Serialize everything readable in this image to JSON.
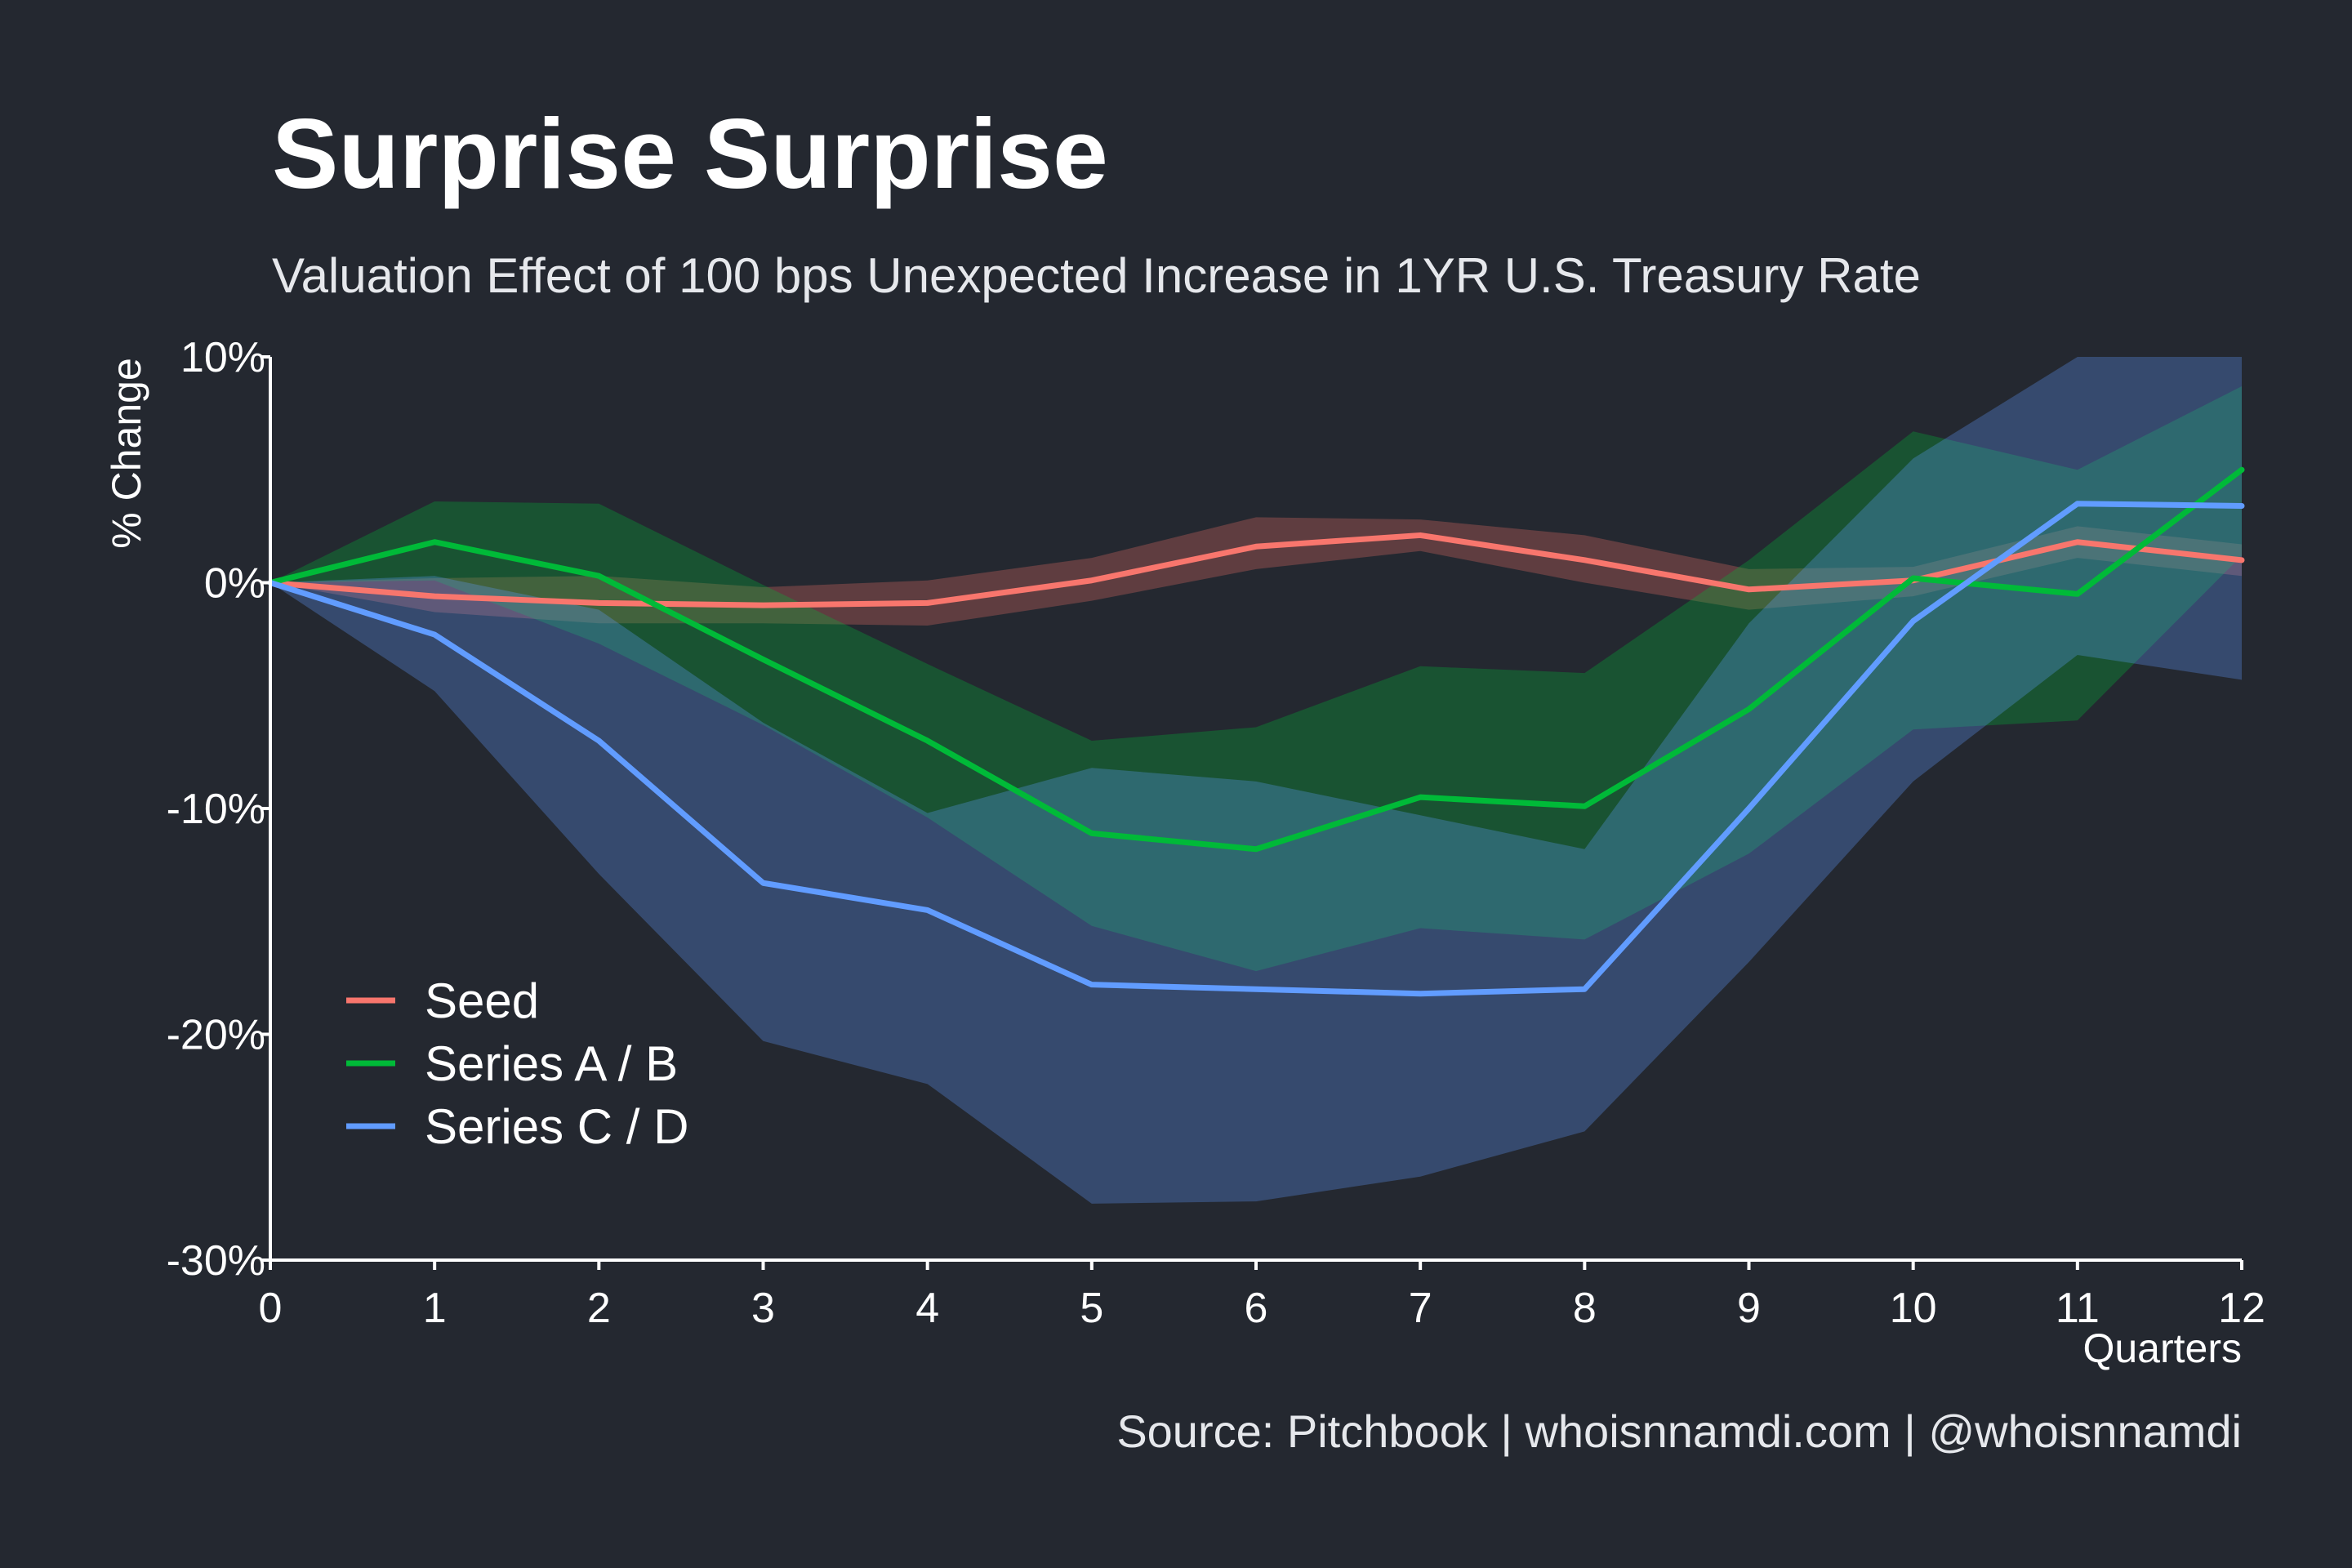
{
  "colors": {
    "background": "#242830",
    "axis": "#ffffff",
    "text": "#ffffff"
  },
  "title": "Surprise Surprise",
  "subtitle": "Valuation Effect of 100 bps Unexpected Increase in 1YR U.S. Treasury Rate",
  "source": "Source: Pitchbook | whoisnnamdi.com | @whoisnnamdi",
  "chart_data": {
    "type": "line",
    "x": [
      0,
      1,
      2,
      3,
      4,
      5,
      6,
      7,
      8,
      9,
      10,
      11,
      12
    ],
    "xlabel": "Quarters",
    "ylabel": "% Change",
    "xlim": [
      0,
      12
    ],
    "ylim": [
      -30,
      10
    ],
    "x_ticks": [
      "0",
      "1",
      "2",
      "3",
      "4",
      "5",
      "6",
      "7",
      "8",
      "9",
      "10",
      "11",
      "12"
    ],
    "y_ticks": [
      {
        "value": 10,
        "label": "10%"
      },
      {
        "value": 0,
        "label": "0%"
      },
      {
        "value": -10,
        "label": "-10%"
      },
      {
        "value": -20,
        "label": "-20%"
      },
      {
        "value": -30,
        "label": "-30%"
      }
    ],
    "grid": false,
    "legend_position": "bottom-left",
    "series": [
      {
        "name": "Seed",
        "color": "#f8766d",
        "values": [
          0,
          -0.6,
          -0.9,
          -1.0,
          -0.9,
          0.1,
          1.6,
          2.1,
          1.0,
          -0.3,
          0.1,
          1.8,
          1.0
        ],
        "band_upper": [
          0,
          0.2,
          0.3,
          -0.2,
          0.1,
          1.1,
          2.9,
          2.8,
          2.1,
          0.6,
          0.7,
          2.5,
          1.7
        ],
        "band_lower": [
          0,
          -1.3,
          -1.8,
          -1.8,
          -1.9,
          -0.8,
          0.6,
          1.4,
          0.0,
          -1.2,
          -0.6,
          1.1,
          0.3
        ],
        "band_opacity": 0.28
      },
      {
        "name": "Series A / B",
        "color": "#00ba38",
        "values": [
          0,
          1.8,
          0.3,
          -3.4,
          -7.0,
          -11.1,
          -11.8,
          -9.5,
          -9.9,
          -5.6,
          0.2,
          -0.5,
          5.0
        ],
        "band_upper": [
          0,
          3.6,
          3.5,
          -0.1,
          -3.6,
          -7.0,
          -6.4,
          -3.7,
          -4.0,
          1.0,
          6.7,
          5.0,
          8.7
        ],
        "band_lower": [
          0,
          0.1,
          -2.7,
          -6.3,
          -10.4,
          -15.2,
          -17.2,
          -15.3,
          -15.8,
          -12.0,
          -6.5,
          -6.1,
          1.2
        ],
        "band_opacity": 0.3
      },
      {
        "name": "Series C / D",
        "color": "#619cff",
        "values": [
          0,
          -2.3,
          -7.0,
          -13.3,
          -14.5,
          -17.8,
          -18.0,
          -18.2,
          -18.0,
          -10.0,
          -1.7,
          3.5,
          3.4
        ],
        "band_upper": [
          0,
          0.3,
          -1.2,
          -6.2,
          -10.2,
          -8.2,
          -8.8,
          -10.3,
          -11.8,
          -1.8,
          5.5,
          10.0,
          10.0
        ],
        "band_lower": [
          0,
          -4.8,
          -12.9,
          -20.3,
          -22.2,
          -27.5,
          -27.4,
          -26.3,
          -24.3,
          -16.8,
          -8.8,
          -3.2,
          -4.3
        ],
        "band_opacity": 0.3
      }
    ]
  }
}
